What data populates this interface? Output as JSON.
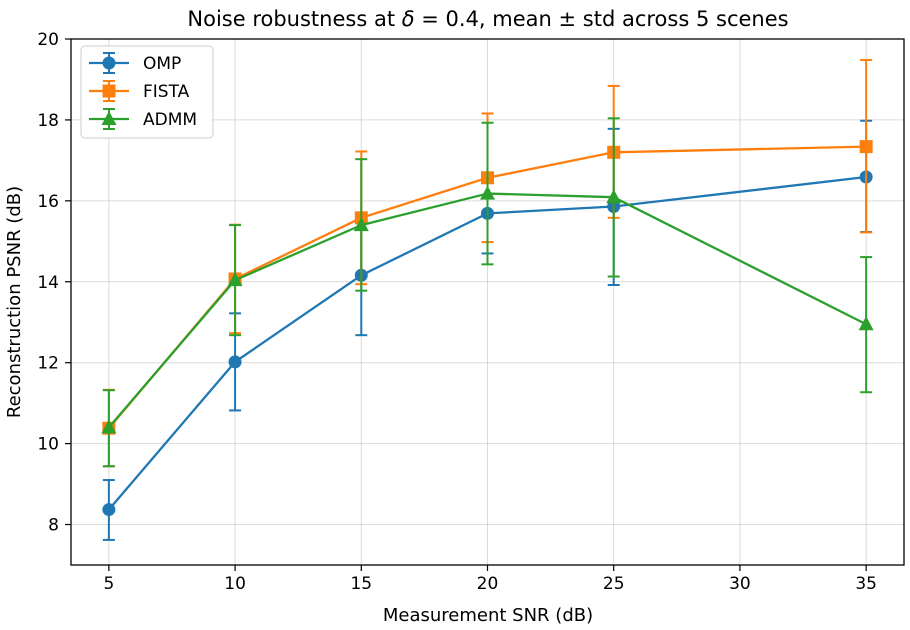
{
  "chart_data": {
    "type": "line",
    "title_prefix": "Noise robustness at ",
    "title_symbol": "δ",
    "title_suffix": " = 0.4, mean ± std across 5 scenes",
    "xlabel": "Measurement SNR (dB)",
    "ylabel": "Reconstruction PSNR (dB)",
    "xlim": [
      3.5,
      36.5
    ],
    "ylim": [
      7.0,
      20.0
    ],
    "xticks": [
      5,
      10,
      15,
      20,
      25,
      30,
      35
    ],
    "yticks": [
      8,
      10,
      12,
      14,
      16,
      18,
      20
    ],
    "grid": true,
    "legend_position": "upper-left",
    "x": [
      5,
      10,
      15,
      20,
      25,
      35
    ],
    "series": [
      {
        "name": "OMP",
        "color": "#1f77b4",
        "marker": "circle",
        "values": [
          8.37,
          12.02,
          14.16,
          15.69,
          15.86,
          16.59
        ],
        "err_low": [
          7.62,
          10.82,
          12.68,
          14.7,
          13.92,
          15.23
        ],
        "err_high": [
          9.1,
          13.22,
          15.64,
          16.68,
          17.78,
          17.98
        ]
      },
      {
        "name": "FISTA",
        "color": "#ff7f0e",
        "marker": "square",
        "values": [
          10.38,
          14.07,
          15.58,
          16.57,
          17.2,
          17.34
        ],
        "err_low": [
          9.44,
          12.73,
          13.94,
          14.98,
          15.58,
          15.22
        ],
        "err_high": [
          11.33,
          15.41,
          17.22,
          18.16,
          18.84,
          19.48
        ]
      },
      {
        "name": "ADMM",
        "color": "#2ca02c",
        "marker": "triangle",
        "values": [
          10.4,
          14.04,
          15.4,
          16.18,
          16.09,
          12.95
        ],
        "err_low": [
          9.44,
          12.68,
          13.78,
          14.43,
          14.13,
          11.27
        ],
        "err_high": [
          11.32,
          15.4,
          17.03,
          17.93,
          18.04,
          14.61
        ]
      }
    ]
  }
}
